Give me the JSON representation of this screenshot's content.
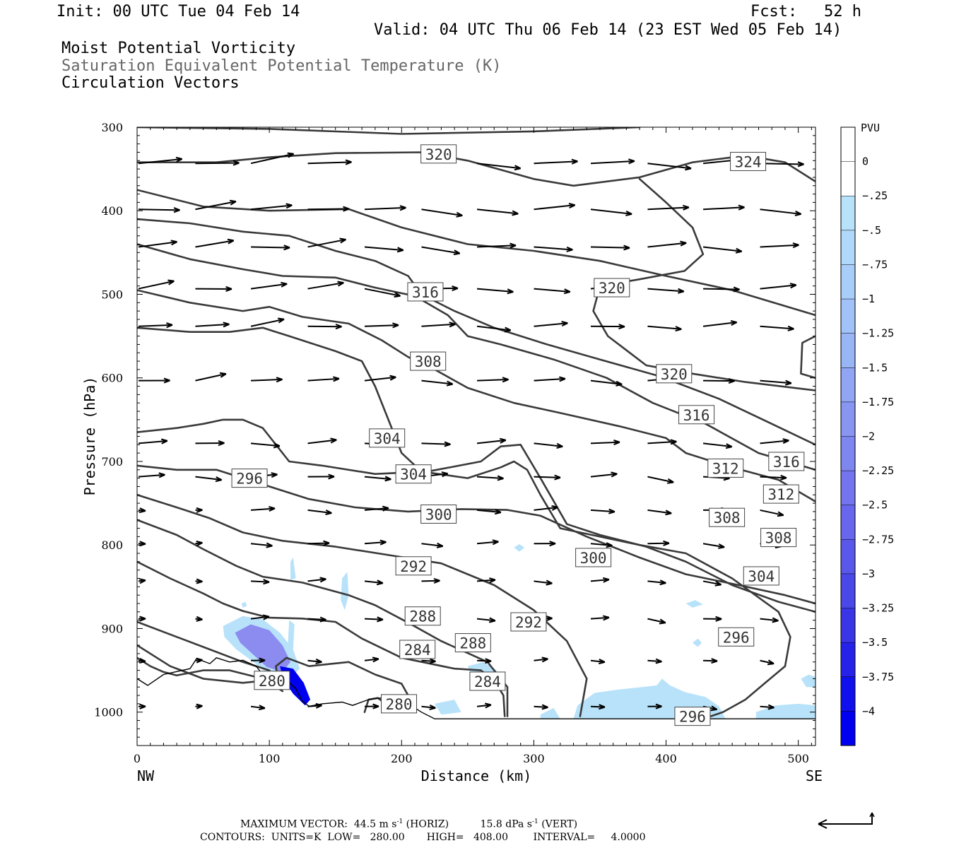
{
  "header": {
    "init": "Init: 00 UTC Tue 04 Feb 14",
    "fcst_label": "Fcst:",
    "fcst_value": "52 h",
    "valid": "Valid: 04 UTC Thu 06 Feb 14 (23 EST Wed 05 Feb 14)",
    "fields": [
      "Moist Potential Vorticity",
      "Saturation Equivalent Potential Temperature (K)",
      "Circulation Vectors"
    ]
  },
  "footer": {
    "max_vector_label": "MAXIMUM VECTOR:",
    "horiz_value": "44.5 m s",
    "horiz_unit": "(HORIZ)",
    "vert_value": "15.8 dPa s",
    "vert_unit": "(VERT)",
    "exponent": "-1",
    "contours_line": "CONTOURS:  UNITS=K  LOW=   280.00       HIGH=   408.00        INTERVAL=     4.0000"
  },
  "colors": {
    "contour": "#3a3a3a",
    "terrain": "#000000",
    "pv_light": "#b8e2fa",
    "pv_mid": "#8c8cf0",
    "pv_dark": "#0000f0"
  },
  "chart_data": {
    "type": "cross-section",
    "xlabel": "Distance (km)",
    "ylabel": "Pressure (hPa)",
    "xlim": [
      0,
      513
    ],
    "ylim": [
      300,
      1040
    ],
    "x_ticks": [
      "0",
      "100",
      "200",
      "300",
      "400",
      "500"
    ],
    "y_ticks": [
      "300",
      "400",
      "500",
      "600",
      "700",
      "800",
      "900",
      "1000"
    ],
    "x_end_labels": [
      "NW",
      "SE"
    ],
    "colorbar": {
      "unit": "PVU",
      "labels": [
        "0",
        "-.25",
        "-.5",
        "-.75",
        "-1",
        "-1.25",
        "-1.5",
        "-1.75",
        "-2",
        "-2.25",
        "-2.5",
        "-2.75",
        "-3",
        "-3.25",
        "-3.5",
        "-3.75",
        "-4"
      ],
      "colors": [
        "#ffffff",
        "#ffffff",
        "#b8e2fa",
        "#b0d8fa",
        "#a8cdf8",
        "#a0c2f8",
        "#98b5f6",
        "#90a6f4",
        "#8896f2",
        "#7e86f0",
        "#7474ee",
        "#6866ec",
        "#5a58ea",
        "#4a48e8",
        "#3a36e8",
        "#2622ea",
        "#1010ee",
        "#0000f0"
      ]
    },
    "contour_labels": [
      {
        "text": "320",
        "x": 228,
        "y": 332
      },
      {
        "text": "324",
        "x": 462,
        "y": 341
      },
      {
        "text": "316",
        "x": 218,
        "y": 497
      },
      {
        "text": "320",
        "x": 359,
        "y": 492
      },
      {
        "text": "308",
        "x": 220,
        "y": 580
      },
      {
        "text": "320",
        "x": 406,
        "y": 595
      },
      {
        "text": "304",
        "x": 189,
        "y": 672
      },
      {
        "text": "316",
        "x": 423,
        "y": 644
      },
      {
        "text": "296",
        "x": 85,
        "y": 720
      },
      {
        "text": "304",
        "x": 209,
        "y": 715
      },
      {
        "text": "312",
        "x": 445,
        "y": 708
      },
      {
        "text": "316",
        "x": 491,
        "y": 700
      },
      {
        "text": "312",
        "x": 487,
        "y": 739
      },
      {
        "text": "300",
        "x": 228,
        "y": 763
      },
      {
        "text": "308",
        "x": 446,
        "y": 767
      },
      {
        "text": "308",
        "x": 485,
        "y": 791
      },
      {
        "text": "292",
        "x": 209,
        "y": 825
      },
      {
        "text": "300",
        "x": 345,
        "y": 815
      },
      {
        "text": "304",
        "x": 472,
        "y": 837
      },
      {
        "text": "288",
        "x": 216,
        "y": 885
      },
      {
        "text": "292",
        "x": 296,
        "y": 892
      },
      {
        "text": "296",
        "x": 453,
        "y": 910
      },
      {
        "text": "288",
        "x": 254,
        "y": 917
      },
      {
        "text": "284",
        "x": 212,
        "y": 925
      },
      {
        "text": "284",
        "x": 265,
        "y": 963
      },
      {
        "text": "280",
        "x": 102,
        "y": 962
      },
      {
        "text": "280",
        "x": 198,
        "y": 990
      },
      {
        "text": "296",
        "x": 420,
        "y": 1005
      }
    ]
  }
}
